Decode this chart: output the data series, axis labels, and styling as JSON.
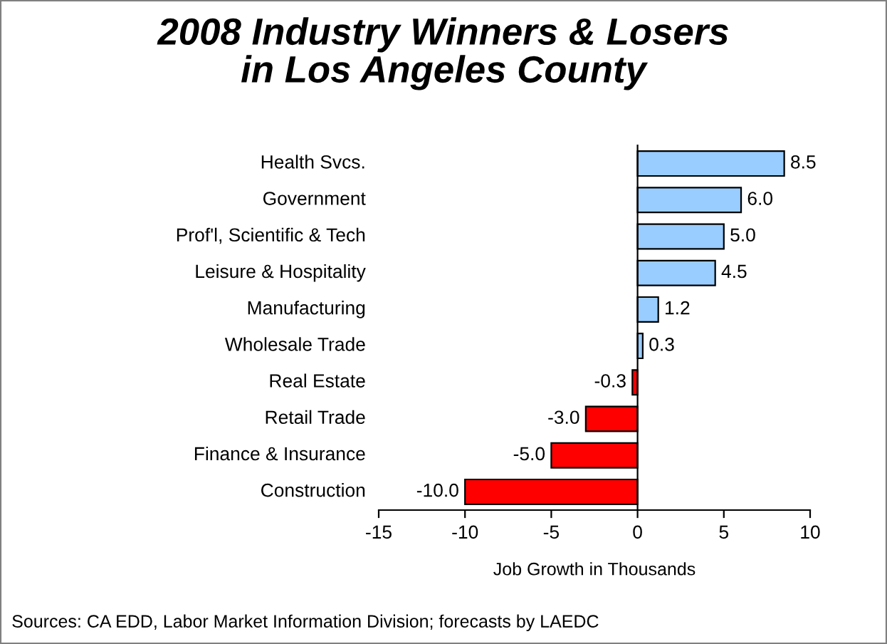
{
  "chart_data": {
    "type": "bar",
    "orientation": "horizontal",
    "title": "2008 Industry Winners & Losers\nin Los Angeles County",
    "xlabel": "Job Growth in Thousands",
    "categories": [
      "Health Svcs.",
      "Government",
      "Prof'l, Scientific & Tech",
      "Leisure & Hospitality",
      "Manufacturing",
      "Wholesale Trade",
      "Real Estate",
      "Retail Trade",
      "Finance & Insurance",
      "Construction"
    ],
    "values": [
      8.5,
      6.0,
      5.0,
      4.5,
      1.2,
      0.3,
      -0.3,
      -3.0,
      -5.0,
      -10.0
    ],
    "colors": [
      "#99ccff",
      "#99ccff",
      "#99ccff",
      "#99ccff",
      "#99ccff",
      "#99ccff",
      "#ff0000",
      "#ff0000",
      "#ff0000",
      "#ff0000"
    ],
    "value_labels": [
      "8.5",
      "6.0",
      "5.0",
      "4.5",
      "1.2",
      "0.3",
      "-0.3",
      "-3.0",
      "-5.0",
      "-10.0"
    ],
    "xlim": [
      -15,
      10
    ],
    "xticks": [
      -15,
      -10,
      -5,
      0,
      5,
      10
    ],
    "annotations": [
      "Sources: CA EDD, Labor Market Information Division; forecasts by LAEDC"
    ]
  }
}
